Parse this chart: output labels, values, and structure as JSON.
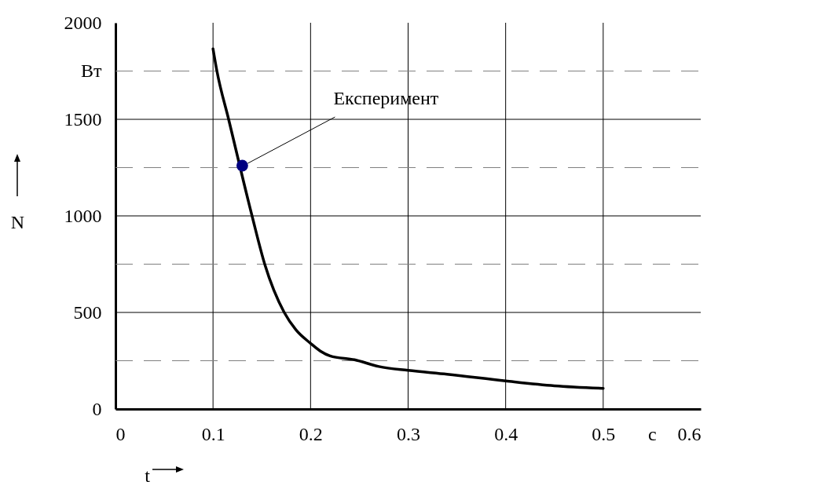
{
  "chart_data": {
    "type": "line",
    "xlabel": "t",
    "ylabel": "N",
    "xlim": [
      0,
      0.6
    ],
    "xticks": [
      0,
      0.1,
      0.2,
      0.3,
      0.4,
      0.5,
      {
        "value": 0.55,
        "label": "с"
      },
      0.6
    ],
    "ylim": [
      0,
      2000
    ],
    "yticks": [
      0,
      500,
      1000,
      1500,
      {
        "value": 1750,
        "label": "Вт"
      },
      2000
    ],
    "grid": true,
    "ref_lines": [
      {
        "axis": "y",
        "value": 250,
        "line_style": "dashed",
        "color": "#808080"
      },
      {
        "axis": "y",
        "value": 750,
        "line_style": "dashed",
        "color": "#808080"
      },
      {
        "axis": "y",
        "value": 1250,
        "line_style": "dashed",
        "color": "#808080"
      },
      {
        "axis": "y",
        "value": 1750,
        "line_style": "dashed",
        "color": "#808080"
      }
    ],
    "series": [
      {
        "color": "#000000",
        "x": [
          0.1,
          0.104,
          0.116,
          0.14,
          0.153,
          0.173,
          0.185,
          0.2,
          0.21,
          0.22,
          0.245,
          0.27,
          0.3,
          0.34,
          0.4,
          0.45,
          0.5
        ],
        "values": [
          1865,
          1750,
          1500,
          1000,
          750,
          500,
          410,
          340,
          300,
          275,
          255,
          220,
          200,
          180,
          145,
          120,
          107
        ]
      },
      {
        "type": "scatter",
        "color": "#000080",
        "x": [
          0.13
        ],
        "values": [
          1260
        ]
      }
    ],
    "annotations": [
      {
        "text": "Експеримент",
        "x": 0.13,
        "y": 1260
      }
    ]
  }
}
